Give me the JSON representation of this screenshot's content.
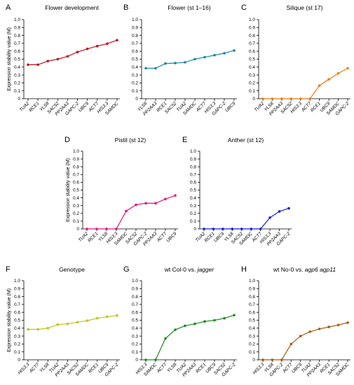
{
  "chart_data": [
    {
      "panel": "A",
      "type": "line",
      "title": "Flower development",
      "ylabel": "Expression stability value (M)",
      "ylim": [
        0,
        1.0
      ],
      "yticks": [
        "0",
        "0.1",
        "0.2",
        "0.3",
        "0.4",
        "0.5",
        "0.6",
        "0.7",
        "0.8",
        "0.9",
        "1.0"
      ],
      "color": "#c1121f",
      "categories": [
        "TUA2",
        "RCE1",
        "YLS8",
        "SAC52",
        "PP2AA3",
        "GAPC-2",
        "UBC9",
        "ACT7",
        "HIS3.3",
        "SAMDC"
      ],
      "values": [
        0.43,
        0.43,
        0.475,
        0.5,
        0.535,
        0.59,
        0.63,
        0.665,
        0.695,
        0.74
      ]
    },
    {
      "panel": "B",
      "type": "line",
      "title": "Flower (st 1–16)",
      "ylabel": "",
      "ylim": [
        0,
        1.0
      ],
      "yticks": [
        "0",
        "0.1",
        "0.2",
        "0.3",
        "0.4",
        "0.5",
        "0.6",
        "0.7",
        "0.8",
        "0.9",
        "1.0"
      ],
      "color": "#1b8aa3",
      "categories": [
        "YLS8",
        "PP2AA3",
        "RCE1",
        "SAC52",
        "TUA2",
        "SAMDC",
        "ACT7",
        "HIS3.3",
        "GAPC-2",
        "UBC9"
      ],
      "values": [
        0.385,
        0.385,
        0.445,
        0.45,
        0.46,
        0.5,
        0.525,
        0.55,
        0.575,
        0.61
      ]
    },
    {
      "panel": "C",
      "type": "line",
      "title": "Silique (st 17)",
      "ylabel": "",
      "ylim": [
        0,
        1.0
      ],
      "yticks": [
        "0",
        "0.1",
        "0.2",
        "0.3",
        "0.4",
        "0.5",
        "0.6",
        "0.7",
        "0.8",
        "0.9",
        "1.0"
      ],
      "color": "#f07c1a",
      "categories": [
        "TUA2",
        "YLS8",
        "PP2AA3",
        "SAC52",
        "HIS3.3",
        "ACT7",
        "RCE1",
        "UBC9",
        "SAMDC",
        "GAPC-2"
      ],
      "values": [
        0,
        0,
        0,
        0,
        0,
        0,
        0.165,
        0.245,
        0.32,
        0.385
      ]
    },
    {
      "panel": "D",
      "type": "line",
      "title": "Pistil (st 12)",
      "ylabel": "Expression stability value (M)",
      "ylim": [
        0,
        1.0
      ],
      "yticks": [
        "0",
        "0.1",
        "0.2",
        "0.3",
        "0.4",
        "0.5",
        "0.6",
        "0.7",
        "0.8",
        "0.9",
        "1.0"
      ],
      "color": "#e2177a",
      "categories": [
        "TUA2",
        "RCE1",
        "YLS8",
        "HIS3.3",
        "SAMDC",
        "SAC52",
        "GAPC-2",
        "PP2AA3",
        "ACT7",
        "UBC9"
      ],
      "values": [
        0,
        0,
        0,
        0,
        0.23,
        0.31,
        0.33,
        0.33,
        0.385,
        0.43
      ]
    },
    {
      "panel": "E",
      "type": "line",
      "title": "Anther (st 12)",
      "ylabel": "",
      "ylim": [
        0,
        1.0
      ],
      "yticks": [
        "0",
        "0.1",
        "0.2",
        "0.3",
        "0.4",
        "0.5",
        "0.6",
        "0.7",
        "0.8",
        "0.9",
        "1.0"
      ],
      "color": "#1a1adb",
      "categories": [
        "TUA2",
        "RCE1",
        "UBC9",
        "YLS8",
        "SAC52",
        "SAMDC",
        "ACT7",
        "HIS3.3",
        "PP2AA3",
        "GAPC-2"
      ],
      "values": [
        0,
        0,
        0,
        0,
        0,
        0,
        0,
        0.145,
        0.225,
        0.265
      ]
    },
    {
      "panel": "F",
      "type": "line",
      "title": "Genotype",
      "ylabel": "Expression stability value (M)",
      "ylim": [
        0,
        1.0
      ],
      "yticks": [
        "0",
        "0.1",
        "0.2",
        "0.3",
        "0.4",
        "0.5",
        "0.6",
        "0.7",
        "0.8",
        "0.9",
        "1.0"
      ],
      "color": "#c2c31a",
      "categories": [
        "HIS3.3",
        "ACT7",
        "YLS8",
        "TUA2",
        "PP2AA3",
        "SAC52",
        "SAMDC",
        "RCE1",
        "UBC9",
        "GAPC-2"
      ],
      "values": [
        0.385,
        0.385,
        0.4,
        0.445,
        0.455,
        0.475,
        0.495,
        0.525,
        0.545,
        0.56
      ]
    },
    {
      "panel": "G",
      "type": "line",
      "title": "wt Col-0 vs. jagger",
      "title_plain": "wt Col-0 vs. ",
      "title_italic": "jagger",
      "ylabel": "",
      "ylim": [
        0,
        1.0
      ],
      "yticks": [
        "0",
        "0.1",
        "0.2",
        "0.3",
        "0.4",
        "0.5",
        "0.6",
        "0.7",
        "0.8",
        "0.9",
        "1.0"
      ],
      "color": "#1f8a1f",
      "categories": [
        "HIS3.3",
        "SAMDC",
        "ACT7",
        "YLS8",
        "TUA2",
        "PP2AA3",
        "RCE1",
        "UBC9",
        "SAC52",
        "GAPC-2"
      ],
      "values": [
        0,
        0,
        0.27,
        0.38,
        0.43,
        0.455,
        0.485,
        0.5,
        0.525,
        0.565
      ]
    },
    {
      "panel": "H",
      "type": "line",
      "title": "wt No-0 vs. agp6 agp11",
      "title_plain": "wt No-0 vs. ",
      "title_italic": "agp6 agp11",
      "ylabel": "",
      "ylim": [
        0,
        1.0
      ],
      "yticks": [
        "0",
        "0.1",
        "0.2",
        "0.3",
        "0.4",
        "0.5",
        "0.6",
        "0.7",
        "0.8",
        "0.9",
        "1.0"
      ],
      "color": "#a8590f",
      "categories": [
        "HIS3.3",
        "YLS8",
        "GAPC-2",
        "ACT7",
        "UBC9",
        "TUA2",
        "PP2AA3",
        "RCE1",
        "SAC52",
        "SAMDC"
      ],
      "values": [
        0,
        0,
        0,
        0.2,
        0.3,
        0.355,
        0.39,
        0.415,
        0.44,
        0.47
      ]
    }
  ]
}
